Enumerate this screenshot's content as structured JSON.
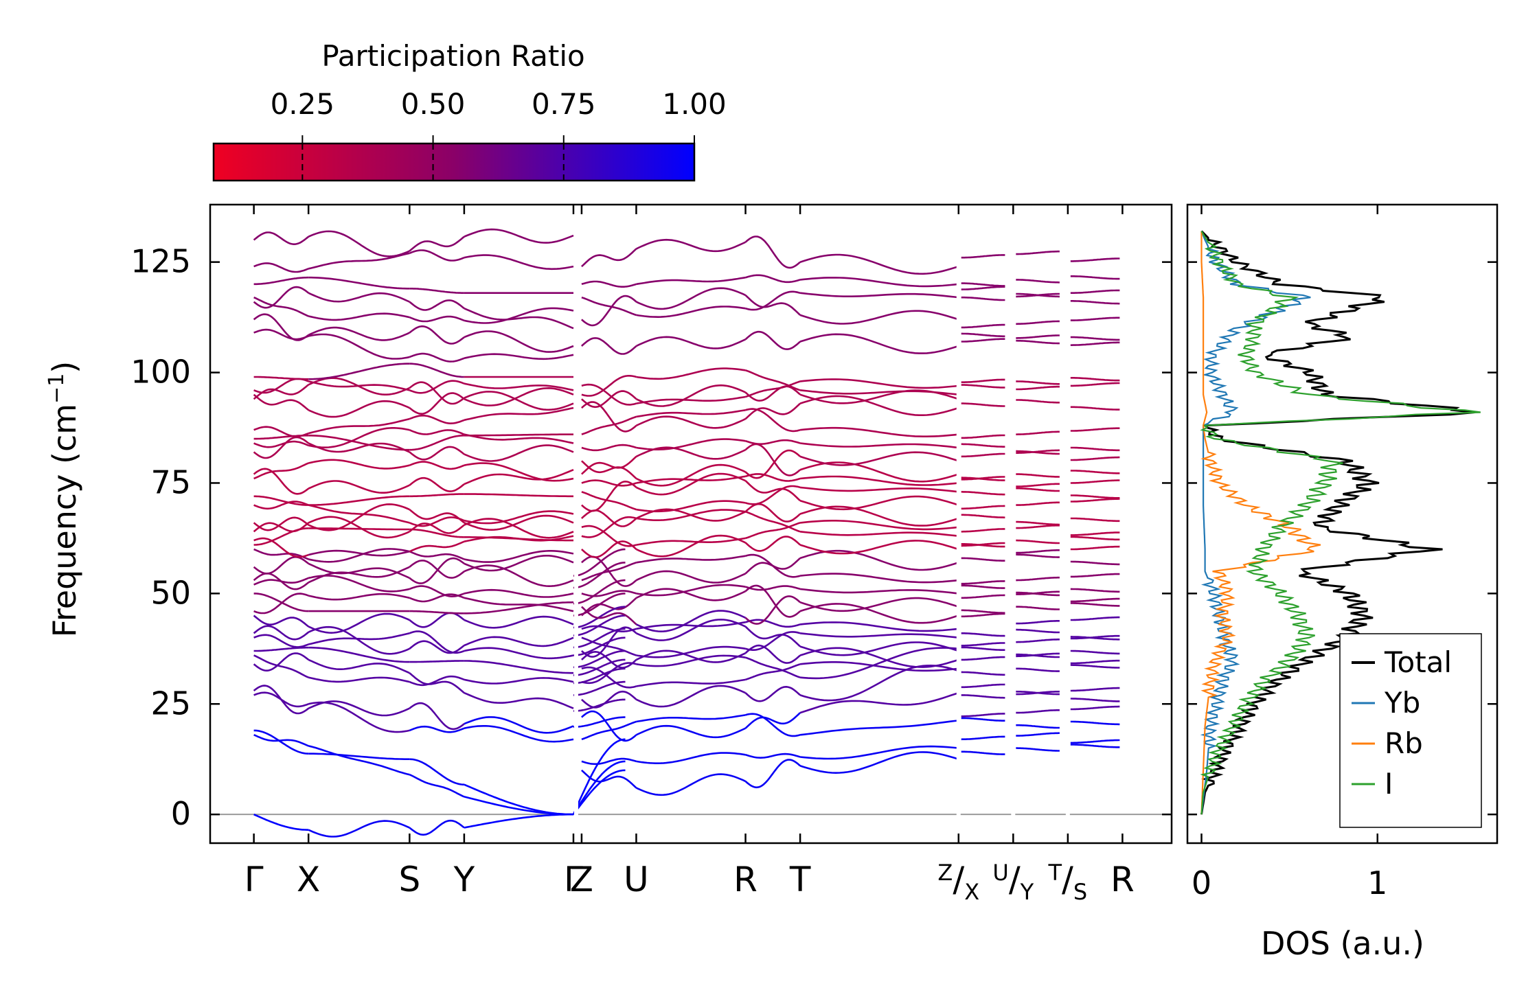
{
  "chart_data": [
    {
      "type": "line",
      "subtype": "phonon-band-structure",
      "ylabel": "Frequency (cm",
      "ylabel_sup": "−1",
      "ylabel_end": ")",
      "ylim": [
        -6.5,
        138
      ],
      "yticks": [
        0,
        25,
        50,
        75,
        100,
        125
      ],
      "zero_line": 0,
      "segments": [
        {
          "range": [
            0,
            5.85
          ],
          "labels": [
            {
              "k": 0,
              "text": "Γ"
            },
            {
              "k": 1,
              "text": "X"
            },
            {
              "k": 2.85,
              "text": "S"
            },
            {
              "k": 3.85,
              "text": "Y"
            },
            {
              "k": 5.85,
              "text": "Γ"
            }
          ]
        },
        {
          "range": [
            5.95,
            12.9
          ],
          "labels": [
            {
              "k": 6.0,
              "text": "Z"
            },
            {
              "k": 7.0,
              "text": "U"
            },
            {
              "k": 9.0,
              "text": "R"
            },
            {
              "k": 10.0,
              "text": "T"
            }
          ]
        },
        {
          "range": [
            12.95,
            13.9
          ],
          "labels": []
        },
        {
          "range": [
            13.95,
            14.9
          ],
          "labels": []
        },
        {
          "range": [
            14.95,
            15.9
          ],
          "labels": []
        }
      ],
      "tick_positions": [
        0,
        1,
        2.85,
        3.85,
        5.85,
        6.0,
        7.0,
        9.0,
        10.0,
        12.9,
        13.9,
        14.9,
        15.9
      ],
      "fraction_labels": [
        {
          "k": 12.9,
          "num": "Z",
          "den": "X"
        },
        {
          "k": 13.9,
          "num": "U",
          "den": "Y"
        },
        {
          "k": 14.9,
          "num": "T",
          "den": "S"
        }
      ],
      "end_label": {
        "k": 15.9,
        "text": "R"
      },
      "band_endpoints_primary": [
        0,
        18,
        19,
        27,
        28,
        34,
        36,
        37,
        40,
        41,
        45,
        46,
        50,
        52,
        53,
        56,
        60,
        61,
        62,
        64,
        66,
        70,
        72,
        76,
        77,
        82,
        84,
        85,
        87,
        94,
        95,
        96,
        99,
        109,
        112,
        116,
        117,
        120,
        124,
        130
      ],
      "band_endpoints_gamma2": [
        0,
        0,
        0,
        17,
        20,
        24,
        30,
        32,
        36,
        40,
        43,
        46,
        48,
        50,
        53,
        57,
        59,
        62,
        63,
        64,
        66,
        68,
        72,
        76,
        78,
        82,
        84,
        86,
        92,
        93,
        95,
        96,
        99,
        104,
        106,
        110,
        114,
        118,
        124,
        131
      ],
      "band_endpoints_zone": [
        10,
        12,
        17,
        22,
        26,
        30,
        33,
        35,
        37,
        40,
        42,
        45,
        47,
        50,
        53,
        57,
        60,
        63,
        65,
        67,
        70,
        73,
        75,
        77,
        80,
        83,
        86,
        92,
        94,
        95,
        97,
        106,
        112,
        117,
        120,
        124
      ],
      "flat_bands": [
        15,
        17,
        21,
        23,
        27,
        28,
        33,
        35,
        37,
        39,
        41,
        44,
        47,
        49,
        51,
        53,
        58,
        60,
        62,
        64,
        67,
        70,
        73,
        75,
        77,
        81,
        83,
        86,
        93,
        97,
        98,
        107,
        108,
        111,
        117,
        118,
        121,
        126
      ],
      "colorbar": {
        "title": "Participation Ratio",
        "range": [
          0.08,
          1.0
        ],
        "ticks": [
          0.25,
          0.5,
          0.75,
          1.0
        ],
        "tick_labels": [
          "0.25",
          "0.50",
          "0.75",
          "1.00"
        ],
        "low_color": "#ef0022",
        "mid_color": "#8a0068",
        "high_color": "#0000ff"
      },
      "band_colors": {
        "acoustic": "#1414f5",
        "low_optic": "#5a0ad0",
        "mid_optic": "#c0004e",
        "high_optic": "#7b10b0"
      }
    },
    {
      "type": "line",
      "subtype": "density-of-states",
      "xlabel": "DOS (a.u.)",
      "xlim": [
        -0.08,
        1.68
      ],
      "xticks": [
        0,
        1
      ],
      "xtick_labels": [
        "0",
        "1"
      ],
      "ylim": [
        -6.5,
        138
      ],
      "legend_position": "lower-right",
      "series": [
        {
          "name": "Total",
          "color": "#000000",
          "peaks": [
            [
              0,
              0.0
            ],
            [
              5,
              0.02
            ],
            [
              10,
              0.08
            ],
            [
              15,
              0.14
            ],
            [
              20,
              0.22
            ],
            [
              25,
              0.3
            ],
            [
              30,
              0.42
            ],
            [
              35,
              0.6
            ],
            [
              40,
              0.82
            ],
            [
              45,
              0.92
            ],
            [
              50,
              0.84
            ],
            [
              55,
              0.55
            ],
            [
              60,
              1.3
            ],
            [
              65,
              0.66
            ],
            [
              70,
              0.78
            ],
            [
              75,
              0.95
            ],
            [
              80,
              0.82
            ],
            [
              85,
              0.1
            ],
            [
              88,
              0.02
            ],
            [
              91,
              1.6
            ],
            [
              95,
              0.7
            ],
            [
              100,
              0.62
            ],
            [
              104,
              0.35
            ],
            [
              108,
              0.85
            ],
            [
              111,
              0.6
            ],
            [
              117,
              1.05
            ],
            [
              120,
              0.45
            ],
            [
              125,
              0.2
            ],
            [
              130,
              0.05
            ],
            [
              132,
              0.0
            ]
          ]
        },
        {
          "name": "Yb",
          "color": "#1f77b4",
          "peaks": [
            [
              0,
              0.0
            ],
            [
              10,
              0.03
            ],
            [
              20,
              0.05
            ],
            [
              30,
              0.12
            ],
            [
              35,
              0.18
            ],
            [
              40,
              0.13
            ],
            [
              45,
              0.1
            ],
            [
              50,
              0.07
            ],
            [
              55,
              0.02
            ],
            [
              60,
              0.02
            ],
            [
              70,
              0.01
            ],
            [
              80,
              0.01
            ],
            [
              88,
              0.01
            ],
            [
              91,
              0.18
            ],
            [
              95,
              0.12
            ],
            [
              100,
              0.05
            ],
            [
              104,
              0.06
            ],
            [
              110,
              0.2
            ],
            [
              117,
              0.6
            ],
            [
              120,
              0.2
            ],
            [
              125,
              0.08
            ],
            [
              130,
              0.02
            ],
            [
              132,
              0.0
            ]
          ]
        },
        {
          "name": "Rb",
          "color": "#ff7f0e",
          "peaks": [
            [
              0,
              0.0
            ],
            [
              10,
              0.01
            ],
            [
              20,
              0.02
            ],
            [
              30,
              0.05
            ],
            [
              35,
              0.08
            ],
            [
              40,
              0.15
            ],
            [
              45,
              0.12
            ],
            [
              50,
              0.15
            ],
            [
              55,
              0.1
            ],
            [
              60,
              0.65
            ],
            [
              65,
              0.5
            ],
            [
              70,
              0.25
            ],
            [
              75,
              0.1
            ],
            [
              80,
              0.05
            ],
            [
              85,
              0.02
            ],
            [
              88,
              0.01
            ],
            [
              91,
              0.03
            ],
            [
              95,
              0.01
            ],
            [
              100,
              0.01
            ],
            [
              110,
              0.01
            ],
            [
              117,
              0.01
            ],
            [
              125,
              0.0
            ],
            [
              132,
              0.0
            ]
          ]
        },
        {
          "name": "I",
          "color": "#2ca02c",
          "peaks": [
            [
              0,
              0.0
            ],
            [
              5,
              0.01
            ],
            [
              10,
              0.05
            ],
            [
              15,
              0.1
            ],
            [
              20,
              0.18
            ],
            [
              25,
              0.25
            ],
            [
              30,
              0.35
            ],
            [
              35,
              0.5
            ],
            [
              40,
              0.6
            ],
            [
              45,
              0.55
            ],
            [
              50,
              0.45
            ],
            [
              55,
              0.3
            ],
            [
              60,
              0.35
            ],
            [
              65,
              0.45
            ],
            [
              70,
              0.6
            ],
            [
              75,
              0.7
            ],
            [
              80,
              0.75
            ],
            [
              85,
              0.08
            ],
            [
              88,
              0.02
            ],
            [
              91,
              1.55
            ],
            [
              95,
              0.6
            ],
            [
              100,
              0.3
            ],
            [
              104,
              0.25
            ],
            [
              108,
              0.3
            ],
            [
              111,
              0.3
            ],
            [
              117,
              0.5
            ],
            [
              120,
              0.2
            ],
            [
              125,
              0.1
            ],
            [
              130,
              0.03
            ],
            [
              132,
              0.0
            ]
          ]
        }
      ]
    }
  ]
}
